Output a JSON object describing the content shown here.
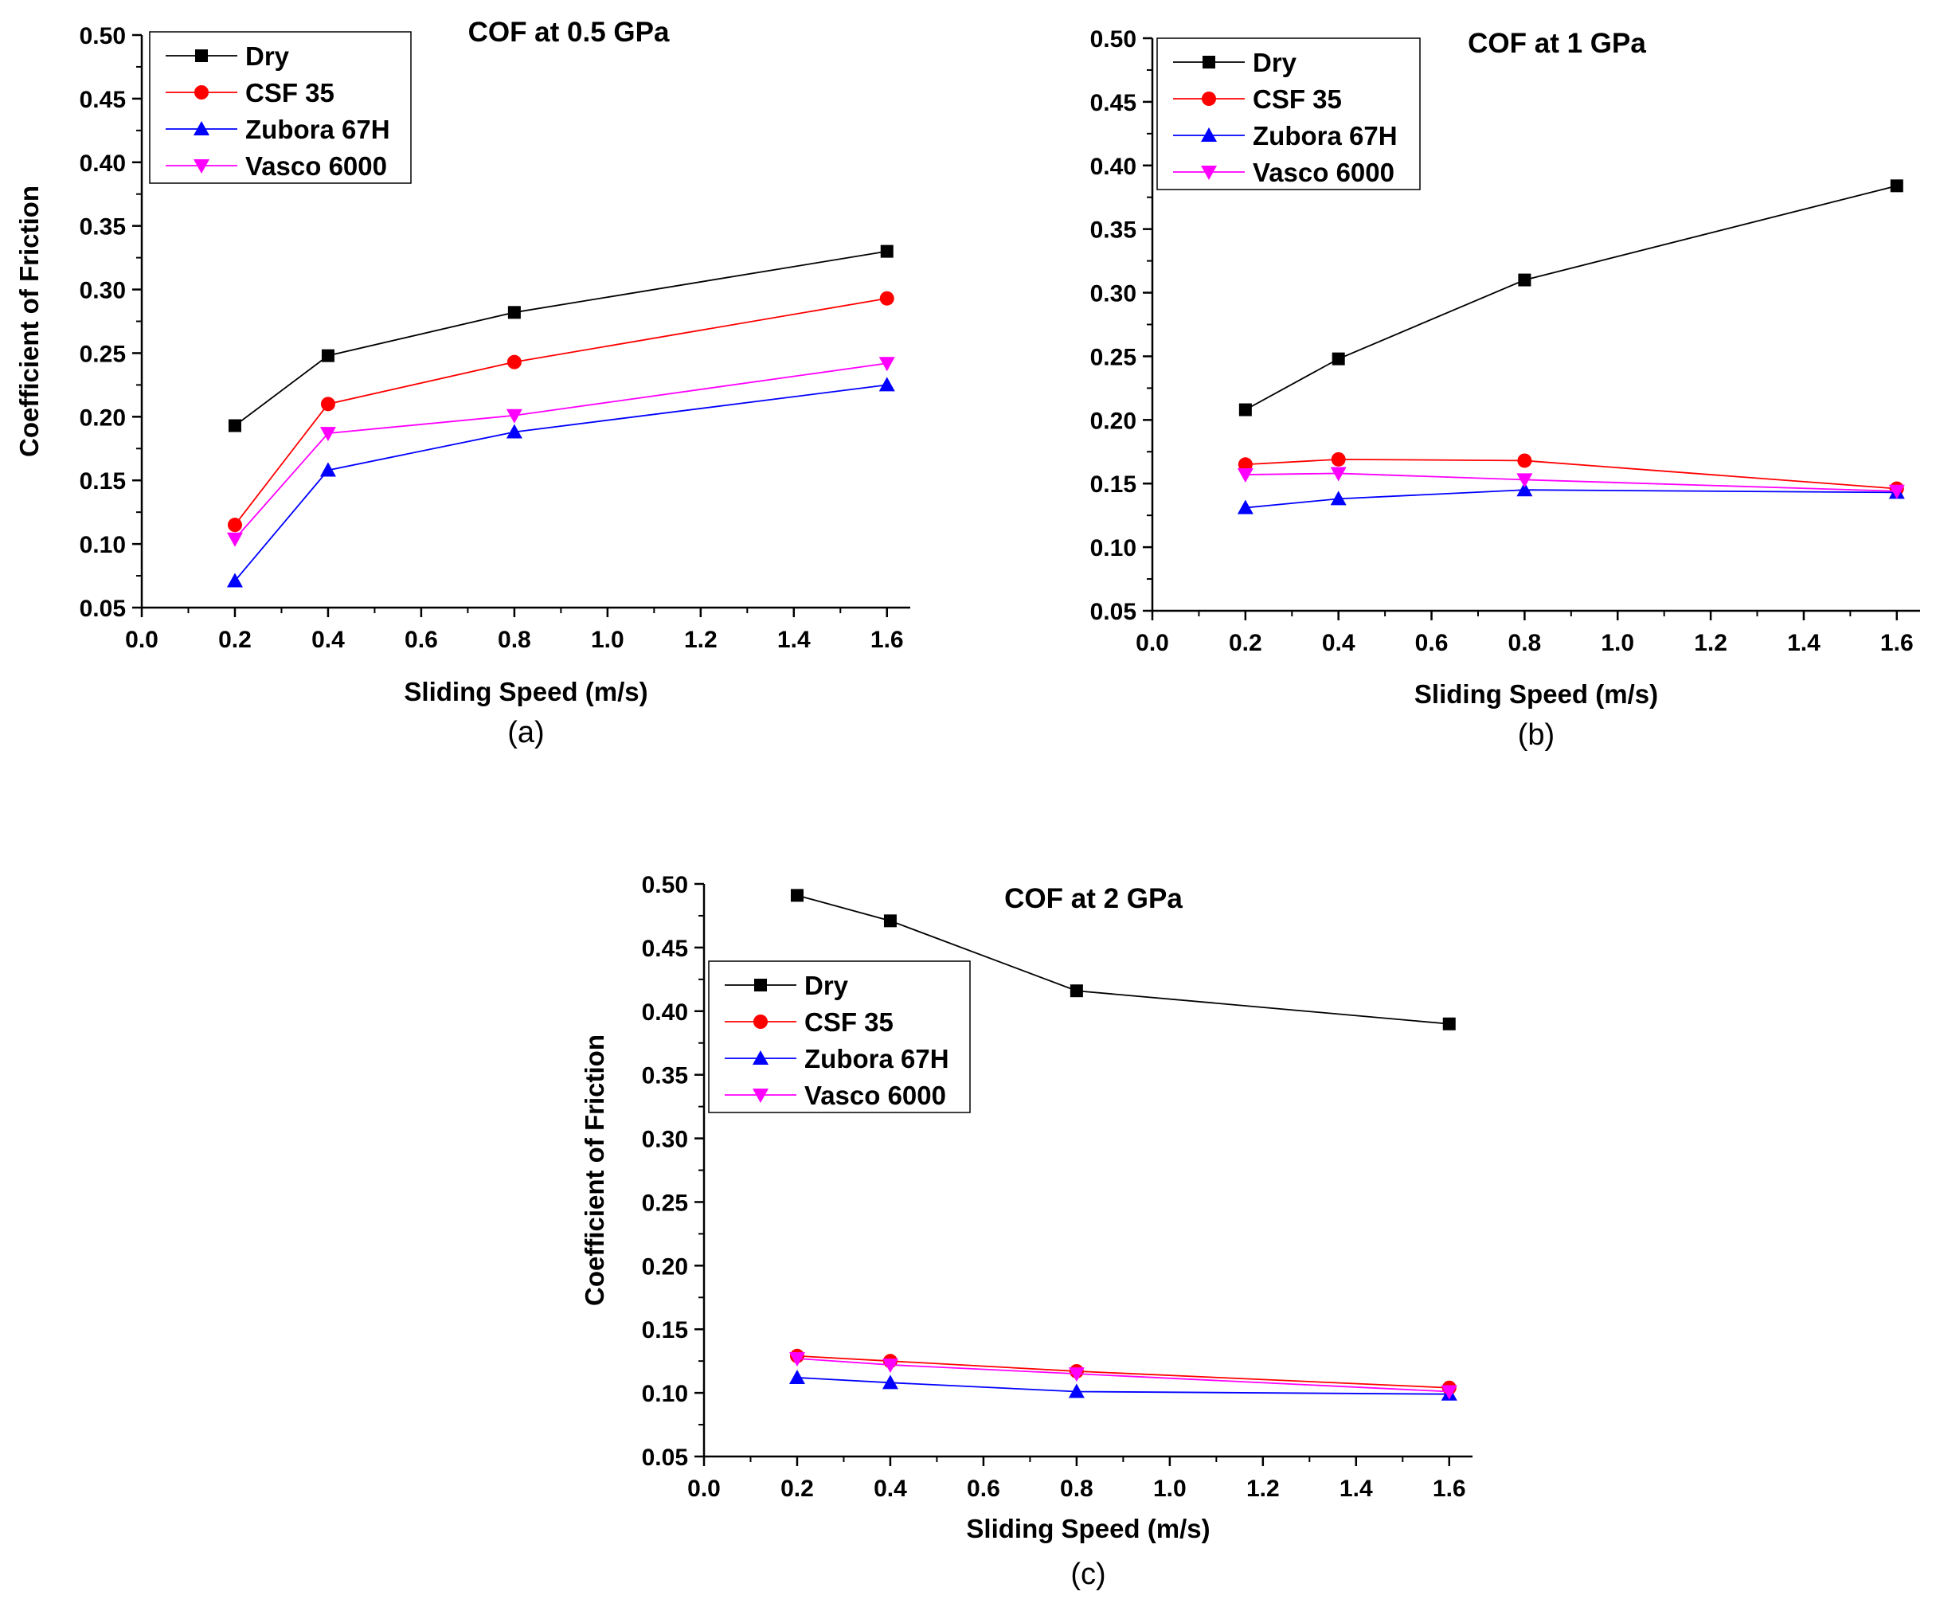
{
  "chart_data": [
    {
      "type": "line",
      "panel": "(a)",
      "title": "COF at 0.5 GPa",
      "xlabel": "Sliding Speed (m/s)",
      "ylabel": "Coefficient of Friction",
      "xlim": [
        0.0,
        1.65
      ],
      "ylim": [
        0.05,
        0.5
      ],
      "xticks": [
        "0.0",
        "0.2",
        "0.4",
        "0.6",
        "0.8",
        "1.0",
        "1.2",
        "1.4",
        "1.6"
      ],
      "yticks": [
        "0.05",
        "0.10",
        "0.15",
        "0.20",
        "0.25",
        "0.30",
        "0.35",
        "0.40",
        "0.45",
        "0.50"
      ],
      "x": [
        0.2,
        0.4,
        0.8,
        1.6
      ],
      "legend_position": "top-left",
      "series": [
        {
          "name": "Dry",
          "values": [
            0.193,
            0.248,
            0.282,
            0.33
          ],
          "color": "#000000",
          "marker": "square"
        },
        {
          "name": "CSF 35",
          "values": [
            0.115,
            0.21,
            0.243,
            0.293
          ],
          "color": "#ff0000",
          "marker": "circle"
        },
        {
          "name": "Zubora 67H",
          "values": [
            0.071,
            0.158,
            0.188,
            0.225
          ],
          "color": "#0000ff",
          "marker": "triangle-up"
        },
        {
          "name": "Vasco 6000",
          "values": [
            0.104,
            0.187,
            0.201,
            0.242
          ],
          "color": "#ff00ff",
          "marker": "triangle-down"
        }
      ]
    },
    {
      "type": "line",
      "panel": "(b)",
      "title": "COF at 1 GPa",
      "xlabel": "Sliding Speed (m/s)",
      "ylabel": "",
      "xlim": [
        0.0,
        1.65
      ],
      "ylim": [
        0.05,
        0.5
      ],
      "xticks": [
        "0.0",
        "0.2",
        "0.4",
        "0.6",
        "0.8",
        "1.0",
        "1.2",
        "1.4",
        "1.6"
      ],
      "yticks": [
        "0.05",
        "0.10",
        "0.15",
        "0.20",
        "0.25",
        "0.30",
        "0.35",
        "0.40",
        "0.45",
        "0.50"
      ],
      "x": [
        0.2,
        0.4,
        0.8,
        1.6
      ],
      "legend_position": "top-left",
      "series": [
        {
          "name": "Dry",
          "values": [
            0.208,
            0.248,
            0.31,
            0.384
          ],
          "color": "#000000",
          "marker": "square"
        },
        {
          "name": "CSF 35",
          "values": [
            0.165,
            0.169,
            0.168,
            0.146
          ],
          "color": "#ff0000",
          "marker": "circle"
        },
        {
          "name": "Zubora 67H",
          "values": [
            0.131,
            0.138,
            0.145,
            0.143
          ],
          "color": "#0000ff",
          "marker": "triangle-up"
        },
        {
          "name": "Vasco 6000",
          "values": [
            0.157,
            0.158,
            0.153,
            0.144
          ],
          "color": "#ff00ff",
          "marker": "triangle-down"
        }
      ]
    },
    {
      "type": "line",
      "panel": "(c)",
      "title": "COF at 2 GPa",
      "xlabel": "Sliding Speed (m/s)",
      "ylabel": "Coefficient of Friction",
      "xlim": [
        0.0,
        1.65
      ],
      "ylim": [
        0.05,
        0.5
      ],
      "xticks": [
        "0.0",
        "0.2",
        "0.4",
        "0.6",
        "0.8",
        "1.0",
        "1.2",
        "1.4",
        "1.6"
      ],
      "yticks": [
        "0.05",
        "0.10",
        "0.15",
        "0.20",
        "0.25",
        "0.30",
        "0.35",
        "0.40",
        "0.45",
        "0.50"
      ],
      "x": [
        0.2,
        0.4,
        0.8,
        1.6
      ],
      "legend_position": "top-left",
      "series": [
        {
          "name": "Dry",
          "values": [
            0.491,
            0.471,
            0.416,
            0.39
          ],
          "color": "#000000",
          "marker": "square"
        },
        {
          "name": "CSF 35",
          "values": [
            0.129,
            0.125,
            0.117,
            0.104
          ],
          "color": "#ff0000",
          "marker": "circle"
        },
        {
          "name": "Zubora 67H",
          "values": [
            0.112,
            0.108,
            0.101,
            0.099
          ],
          "color": "#0000ff",
          "marker": "triangle-up"
        },
        {
          "name": "Vasco 6000",
          "values": [
            0.127,
            0.122,
            0.115,
            0.101
          ],
          "color": "#ff00ff",
          "marker": "triangle-down"
        }
      ]
    }
  ]
}
